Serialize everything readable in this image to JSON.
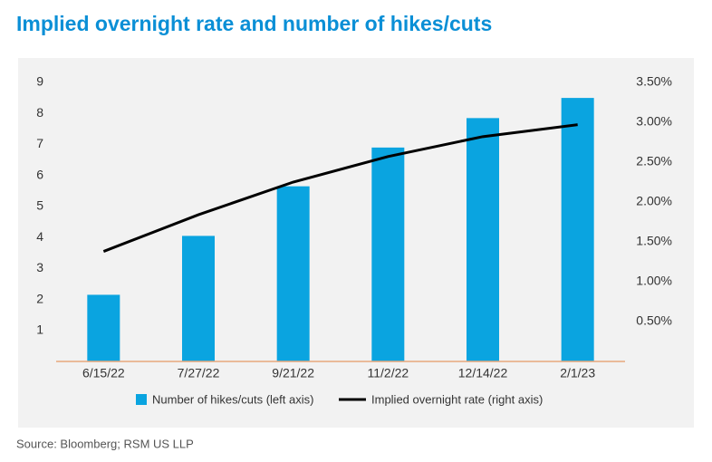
{
  "chart_data": {
    "type": "bar_line",
    "title": "Implied overnight rate and number of hikes/cuts",
    "source": "Source: Bloomberg; RSM US LLP",
    "categories": [
      "6/15/22",
      "7/27/22",
      "9/21/22",
      "11/2/22",
      "12/14/22",
      "2/1/23"
    ],
    "series": [
      {
        "name": "Number of hikes/cuts (left axis)",
        "type": "bar",
        "color": "#0aa4e0",
        "values": [
          2.15,
          4.05,
          5.65,
          6.9,
          7.85,
          8.5
        ]
      },
      {
        "name": "Implied overnight rate (right axis)",
        "type": "line",
        "axis": "y2",
        "color": "#000000",
        "values": [
          1.38,
          1.84,
          2.25,
          2.57,
          2.82,
          2.97
        ]
      }
    ],
    "ylim": [
      0,
      9
    ],
    "yticks": [
      1,
      2,
      3,
      4,
      5,
      6,
      7,
      8,
      9
    ],
    "y2lim": [
      0,
      3.5
    ],
    "y2ticks": [
      {
        "value": 0.5,
        "label": "0.50%"
      },
      {
        "value": 1,
        "label": "1.00%"
      },
      {
        "value": 1.5,
        "label": "1.50%"
      },
      {
        "value": 2,
        "label": "2.00%"
      },
      {
        "value": 2.5,
        "label": "2.50%"
      },
      {
        "value": 3,
        "label": "3.00%"
      },
      {
        "value": 3.5,
        "label": "3.50%"
      }
    ],
    "grid": false
  }
}
